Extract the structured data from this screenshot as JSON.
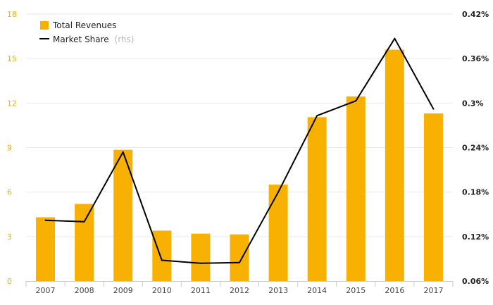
{
  "chart_data": {
    "type": "bar",
    "categories": [
      "2007",
      "2008",
      "2009",
      "2010",
      "2011",
      "2012",
      "2013",
      "2014",
      "2015",
      "2016",
      "2017"
    ],
    "series": [
      {
        "name": "Total Revenues",
        "type": "bar",
        "axis": "left",
        "color": "#f8b100",
        "values": [
          4.3,
          5.2,
          8.85,
          3.4,
          3.2,
          3.15,
          6.5,
          11.05,
          12.45,
          15.6,
          11.3
        ]
      },
      {
        "name": "Market Share",
        "name_suffix": "(rhs)",
        "type": "line",
        "axis": "right",
        "color": "#000000",
        "values": [
          0.142,
          0.14,
          0.234,
          0.088,
          0.084,
          0.085,
          0.18,
          0.283,
          0.303,
          0.387,
          0.292
        ]
      }
    ],
    "y_left": {
      "ylim": [
        0,
        18
      ],
      "ticks": [
        0,
        3,
        6,
        9,
        12,
        15,
        18
      ],
      "tick_labels": [
        "0",
        "3",
        "6",
        "9",
        "12",
        "15",
        "18"
      ]
    },
    "y_right": {
      "ylim": [
        0.06,
        0.42
      ],
      "ticks": [
        0.06,
        0.12,
        0.18,
        0.24,
        0.3,
        0.36,
        0.42
      ],
      "tick_labels": [
        "0.06%",
        "0.12%",
        "0.18%",
        "0.24%",
        "0.3%",
        "0.36%",
        "0.42%"
      ]
    },
    "grid": true,
    "legend_position": "top-left"
  }
}
